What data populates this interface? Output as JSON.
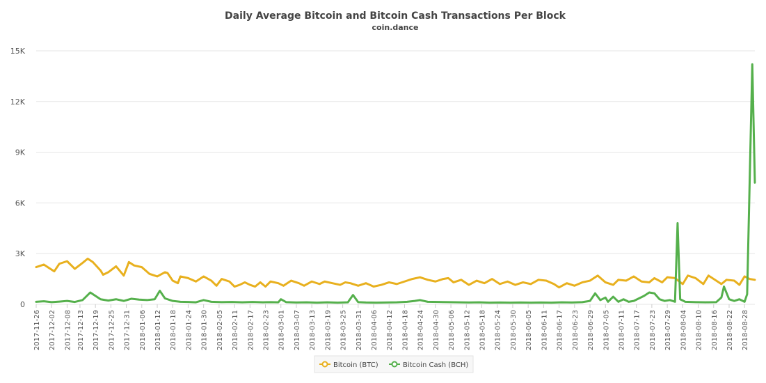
{
  "chart_data": {
    "type": "line",
    "title": "Daily Average Bitcoin and Bitcoin Cash Transactions Per Block",
    "subtitle": "coin.dance",
    "xlabel": "",
    "ylabel": "",
    "x_start": "2017-11-26",
    "x_end": "2018-09-01",
    "ylim": [
      0,
      15000
    ],
    "yticks": [
      {
        "value": 0,
        "label": "0"
      },
      {
        "value": 3000,
        "label": "3K"
      },
      {
        "value": 6000,
        "label": "6K"
      },
      {
        "value": 9000,
        "label": "9K"
      },
      {
        "value": 12000,
        "label": "12K"
      },
      {
        "value": 15000,
        "label": "15K"
      }
    ],
    "xticks": [
      "2017-11-26",
      "2017-12-02",
      "2017-12-08",
      "2017-12-13",
      "2017-12-19",
      "2017-12-25",
      "2017-12-31",
      "2018-01-06",
      "2018-01-12",
      "2018-01-18",
      "2018-01-24",
      "2018-01-30",
      "2018-02-05",
      "2018-02-11",
      "2018-02-17",
      "2018-02-23",
      "2018-03-01",
      "2018-03-07",
      "2018-03-13",
      "2018-03-19",
      "2018-03-25",
      "2018-03-31",
      "2018-04-06",
      "2018-04-12",
      "2018-04-18",
      "2018-04-24",
      "2018-04-30",
      "2018-05-06",
      "2018-05-12",
      "2018-05-18",
      "2018-05-24",
      "2018-05-30",
      "2018-06-05",
      "2018-06-11",
      "2018-06-17",
      "2018-06-23",
      "2018-06-29",
      "2018-07-05",
      "2018-07-11",
      "2018-07-17",
      "2018-07-23",
      "2018-07-29",
      "2018-08-04",
      "2018-08-10",
      "2018-08-16",
      "2018-08-22",
      "2018-08-28"
    ],
    "grid": true,
    "legend_position": "bottom-center",
    "series": [
      {
        "name": "Bitcoin (BTC)",
        "color": "#e8b01e",
        "points": [
          [
            "2017-11-26",
            2200
          ],
          [
            "2017-11-29",
            2350
          ],
          [
            "2017-12-01",
            2150
          ],
          [
            "2017-12-03",
            1950
          ],
          [
            "2017-12-05",
            2400
          ],
          [
            "2017-12-08",
            2550
          ],
          [
            "2017-12-11",
            2100
          ],
          [
            "2017-12-14",
            2450
          ],
          [
            "2017-12-16",
            2700
          ],
          [
            "2017-12-18",
            2500
          ],
          [
            "2017-12-21",
            2000
          ],
          [
            "2017-12-22",
            1750
          ],
          [
            "2017-12-24",
            1900
          ],
          [
            "2017-12-27",
            2250
          ],
          [
            "2017-12-30",
            1700
          ],
          [
            "2018-01-01",
            2500
          ],
          [
            "2018-01-03",
            2300
          ],
          [
            "2018-01-06",
            2200
          ],
          [
            "2018-01-09",
            1800
          ],
          [
            "2018-01-12",
            1650
          ],
          [
            "2018-01-15",
            1900
          ],
          [
            "2018-01-16",
            1850
          ],
          [
            "2018-01-18",
            1400
          ],
          [
            "2018-01-20",
            1250
          ],
          [
            "2018-01-21",
            1650
          ],
          [
            "2018-01-24",
            1550
          ],
          [
            "2018-01-27",
            1350
          ],
          [
            "2018-01-30",
            1650
          ],
          [
            "2018-02-02",
            1400
          ],
          [
            "2018-02-04",
            1100
          ],
          [
            "2018-02-06",
            1500
          ],
          [
            "2018-02-09",
            1350
          ],
          [
            "2018-02-11",
            1050
          ],
          [
            "2018-02-13",
            1150
          ],
          [
            "2018-02-15",
            1300
          ],
          [
            "2018-02-17",
            1150
          ],
          [
            "2018-02-19",
            1050
          ],
          [
            "2018-02-21",
            1300
          ],
          [
            "2018-02-23",
            1050
          ],
          [
            "2018-02-25",
            1350
          ],
          [
            "2018-02-28",
            1250
          ],
          [
            "2018-03-02",
            1100
          ],
          [
            "2018-03-05",
            1400
          ],
          [
            "2018-03-08",
            1250
          ],
          [
            "2018-03-10",
            1100
          ],
          [
            "2018-03-13",
            1350
          ],
          [
            "2018-03-16",
            1200
          ],
          [
            "2018-03-18",
            1350
          ],
          [
            "2018-03-21",
            1250
          ],
          [
            "2018-03-24",
            1150
          ],
          [
            "2018-03-26",
            1300
          ],
          [
            "2018-03-28",
            1250
          ],
          [
            "2018-03-31",
            1100
          ],
          [
            "2018-04-03",
            1250
          ],
          [
            "2018-04-06",
            1050
          ],
          [
            "2018-04-09",
            1150
          ],
          [
            "2018-04-12",
            1300
          ],
          [
            "2018-04-15",
            1200
          ],
          [
            "2018-04-18",
            1350
          ],
          [
            "2018-04-21",
            1500
          ],
          [
            "2018-04-24",
            1600
          ],
          [
            "2018-04-27",
            1450
          ],
          [
            "2018-04-30",
            1350
          ],
          [
            "2018-05-03",
            1500
          ],
          [
            "2018-05-05",
            1550
          ],
          [
            "2018-05-07",
            1300
          ],
          [
            "2018-05-10",
            1450
          ],
          [
            "2018-05-13",
            1150
          ],
          [
            "2018-05-16",
            1400
          ],
          [
            "2018-05-19",
            1250
          ],
          [
            "2018-05-22",
            1500
          ],
          [
            "2018-05-25",
            1200
          ],
          [
            "2018-05-28",
            1350
          ],
          [
            "2018-05-31",
            1150
          ],
          [
            "2018-06-03",
            1300
          ],
          [
            "2018-06-06",
            1200
          ],
          [
            "2018-06-09",
            1450
          ],
          [
            "2018-06-12",
            1400
          ],
          [
            "2018-06-15",
            1200
          ],
          [
            "2018-06-17",
            1000
          ],
          [
            "2018-06-20",
            1250
          ],
          [
            "2018-06-23",
            1100
          ],
          [
            "2018-06-26",
            1300
          ],
          [
            "2018-06-29",
            1400
          ],
          [
            "2018-07-02",
            1700
          ],
          [
            "2018-07-05",
            1300
          ],
          [
            "2018-07-08",
            1150
          ],
          [
            "2018-07-10",
            1450
          ],
          [
            "2018-07-13",
            1400
          ],
          [
            "2018-07-16",
            1650
          ],
          [
            "2018-07-19",
            1350
          ],
          [
            "2018-07-22",
            1300
          ],
          [
            "2018-07-24",
            1550
          ],
          [
            "2018-07-27",
            1300
          ],
          [
            "2018-07-29",
            1600
          ],
          [
            "2018-08-01",
            1550
          ],
          [
            "2018-08-04",
            1200
          ],
          [
            "2018-08-06",
            1700
          ],
          [
            "2018-08-09",
            1550
          ],
          [
            "2018-08-12",
            1200
          ],
          [
            "2018-08-14",
            1700
          ],
          [
            "2018-08-17",
            1400
          ],
          [
            "2018-08-19",
            1200
          ],
          [
            "2018-08-21",
            1450
          ],
          [
            "2018-08-24",
            1400
          ],
          [
            "2018-08-26",
            1150
          ],
          [
            "2018-08-28",
            1650
          ],
          [
            "2018-08-30",
            1500
          ],
          [
            "2018-09-01",
            1450
          ]
        ]
      },
      {
        "name": "Bitcoin Cash (BCH)",
        "color": "#55b04c",
        "points": [
          [
            "2017-11-26",
            150
          ],
          [
            "2017-11-29",
            180
          ],
          [
            "2017-12-02",
            130
          ],
          [
            "2017-12-05",
            160
          ],
          [
            "2017-12-08",
            200
          ],
          [
            "2017-12-11",
            140
          ],
          [
            "2017-12-14",
            250
          ],
          [
            "2017-12-16",
            550
          ],
          [
            "2017-12-17",
            700
          ],
          [
            "2017-12-19",
            500
          ],
          [
            "2017-12-21",
            300
          ],
          [
            "2017-12-24",
            220
          ],
          [
            "2017-12-27",
            300
          ],
          [
            "2017-12-30",
            200
          ],
          [
            "2018-01-02",
            330
          ],
          [
            "2018-01-05",
            280
          ],
          [
            "2018-01-08",
            250
          ],
          [
            "2018-01-11",
            300
          ],
          [
            "2018-01-13",
            800
          ],
          [
            "2018-01-15",
            350
          ],
          [
            "2018-01-18",
            200
          ],
          [
            "2018-01-21",
            150
          ],
          [
            "2018-01-24",
            140
          ],
          [
            "2018-01-27",
            120
          ],
          [
            "2018-01-30",
            250
          ],
          [
            "2018-02-02",
            150
          ],
          [
            "2018-02-06",
            130
          ],
          [
            "2018-02-10",
            140
          ],
          [
            "2018-02-14",
            120
          ],
          [
            "2018-02-18",
            140
          ],
          [
            "2018-02-22",
            120
          ],
          [
            "2018-02-25",
            130
          ],
          [
            "2018-02-28",
            120
          ],
          [
            "2018-03-01",
            300
          ],
          [
            "2018-03-03",
            130
          ],
          [
            "2018-03-07",
            110
          ],
          [
            "2018-03-11",
            120
          ],
          [
            "2018-03-15",
            100
          ],
          [
            "2018-03-19",
            120
          ],
          [
            "2018-03-23",
            100
          ],
          [
            "2018-03-27",
            120
          ],
          [
            "2018-03-29",
            550
          ],
          [
            "2018-03-31",
            130
          ],
          [
            "2018-04-03",
            110
          ],
          [
            "2018-04-07",
            100
          ],
          [
            "2018-04-11",
            110
          ],
          [
            "2018-04-15",
            120
          ],
          [
            "2018-04-19",
            150
          ],
          [
            "2018-04-22",
            200
          ],
          [
            "2018-04-24",
            250
          ],
          [
            "2018-04-27",
            150
          ],
          [
            "2018-05-01",
            140
          ],
          [
            "2018-05-05",
            130
          ],
          [
            "2018-05-09",
            120
          ],
          [
            "2018-05-13",
            110
          ],
          [
            "2018-05-17",
            120
          ],
          [
            "2018-05-21",
            100
          ],
          [
            "2018-05-25",
            110
          ],
          [
            "2018-05-29",
            100
          ],
          [
            "2018-06-02",
            110
          ],
          [
            "2018-06-06",
            100
          ],
          [
            "2018-06-10",
            110
          ],
          [
            "2018-06-14",
            100
          ],
          [
            "2018-06-18",
            120
          ],
          [
            "2018-06-22",
            110
          ],
          [
            "2018-06-26",
            130
          ],
          [
            "2018-06-29",
            200
          ],
          [
            "2018-07-01",
            650
          ],
          [
            "2018-07-03",
            250
          ],
          [
            "2018-07-05",
            400
          ],
          [
            "2018-07-06",
            150
          ],
          [
            "2018-07-08",
            450
          ],
          [
            "2018-07-10",
            150
          ],
          [
            "2018-07-12",
            300
          ],
          [
            "2018-07-14",
            150
          ],
          [
            "2018-07-16",
            200
          ],
          [
            "2018-07-18",
            350
          ],
          [
            "2018-07-20",
            500
          ],
          [
            "2018-07-22",
            700
          ],
          [
            "2018-07-24",
            650
          ],
          [
            "2018-07-26",
            300
          ],
          [
            "2018-07-28",
            200
          ],
          [
            "2018-07-30",
            250
          ],
          [
            "2018-08-01",
            150
          ],
          [
            "2018-08-02",
            4800
          ],
          [
            "2018-08-03",
            300
          ],
          [
            "2018-08-05",
            150
          ],
          [
            "2018-08-09",
            130
          ],
          [
            "2018-08-13",
            120
          ],
          [
            "2018-08-17",
            130
          ],
          [
            "2018-08-19",
            400
          ],
          [
            "2018-08-20",
            1050
          ],
          [
            "2018-08-22",
            300
          ],
          [
            "2018-08-24",
            200
          ],
          [
            "2018-08-26",
            300
          ],
          [
            "2018-08-28",
            150
          ],
          [
            "2018-08-29",
            600
          ],
          [
            "2018-08-31",
            14200
          ],
          [
            "2018-09-01",
            7200
          ]
        ]
      }
    ]
  }
}
